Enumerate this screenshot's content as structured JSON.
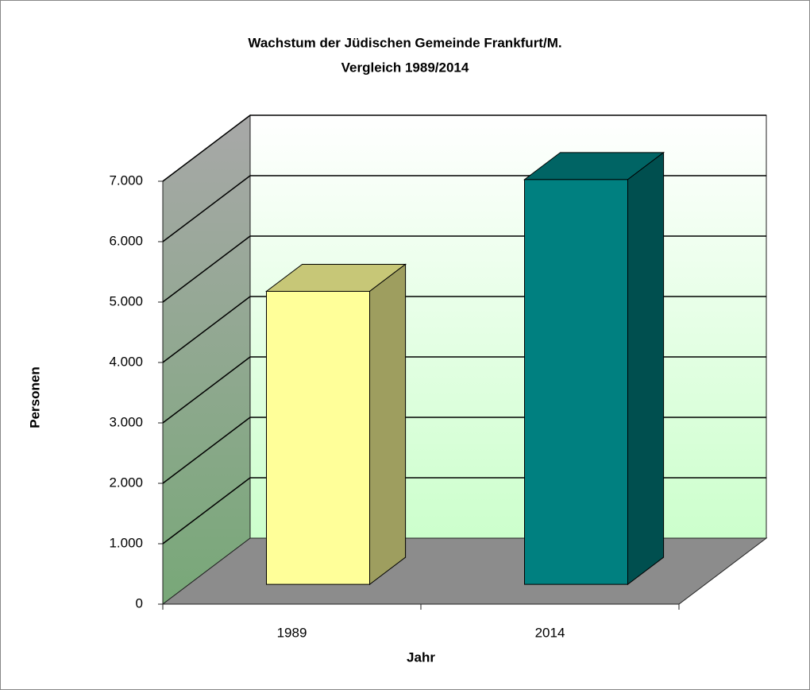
{
  "chart_data": {
    "type": "bar3d",
    "title": [
      "Wachstum der Jüdischen Gemeinde Frankfurt/M.",
      "Vergleich 1989/2014"
    ],
    "x_label": "Jahr",
    "y_label": "Personen",
    "categories": [
      "1989",
      "2014"
    ],
    "values": [
      4850,
      6700
    ],
    "colors": [
      "#ffff99",
      "#008080"
    ],
    "ylim": [
      0,
      7000
    ],
    "yticks": [
      0,
      {
        "value": 1000,
        "label": "1.000"
      },
      {
        "value": 2000,
        "label": "2.000"
      },
      {
        "value": 3000,
        "label": "3.000"
      },
      {
        "value": 4000,
        "label": "4.000"
      },
      {
        "value": 5000,
        "label": "5.000"
      },
      {
        "value": 6000,
        "label": "6.000"
      },
      {
        "value": 7000,
        "label": "7.000"
      }
    ],
    "grid": true
  }
}
